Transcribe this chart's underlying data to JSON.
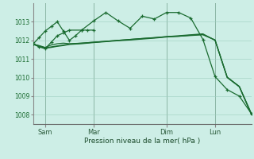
{
  "background_color": "#cdeee6",
  "grid_color": "#9ecfbf",
  "line_color": "#1a6b30",
  "xlabel": "Pression niveau de la mer( hPa )",
  "ylim": [
    1007.5,
    1014.0
  ],
  "yticks": [
    1008,
    1009,
    1010,
    1011,
    1012,
    1013
  ],
  "xlim": [
    0,
    18
  ],
  "xtick_positions": [
    1,
    5,
    11,
    15
  ],
  "xtick_labels": [
    "Sam",
    "Mar",
    "Dim",
    "Lun"
  ],
  "vline_positions": [
    1,
    5,
    11,
    15
  ],
  "series": [
    {
      "x": [
        0,
        0.5,
        1,
        1.5,
        2,
        2.5,
        3,
        4,
        5,
        6,
        7,
        8,
        9,
        10,
        11,
        12,
        13,
        14,
        15,
        16,
        17,
        18
      ],
      "y": [
        1011.8,
        1011.7,
        1011.6,
        1011.65,
        1011.7,
        1011.75,
        1011.8,
        1011.85,
        1011.9,
        1011.95,
        1012.0,
        1012.05,
        1012.1,
        1012.15,
        1012.2,
        1012.25,
        1012.3,
        1012.35,
        1012.0,
        1010.0,
        1009.5,
        1008.0
      ],
      "marker": null,
      "lw": 0.9,
      "zorder": 3
    },
    {
      "x": [
        0,
        0.5,
        1,
        1.5,
        2,
        2.5,
        3,
        4,
        5,
        6,
        7,
        8,
        9,
        10,
        11,
        12,
        13,
        14,
        15,
        16,
        17,
        18
      ],
      "y": [
        1011.8,
        1011.68,
        1011.58,
        1011.62,
        1011.68,
        1011.72,
        1011.78,
        1011.82,
        1011.88,
        1011.93,
        1011.98,
        1012.02,
        1012.07,
        1012.12,
        1012.18,
        1012.22,
        1012.28,
        1012.32,
        1012.02,
        1010.02,
        1009.52,
        1008.02
      ],
      "marker": null,
      "lw": 0.9,
      "zorder": 3
    },
    {
      "x": [
        0,
        0.5,
        1,
        1.5,
        2,
        2.5,
        3,
        4,
        5,
        6,
        7,
        8,
        9,
        10,
        11,
        12,
        13,
        14,
        15,
        16,
        17,
        18
      ],
      "y": [
        1011.8,
        1011.65,
        1011.55,
        1011.9,
        1012.25,
        1012.4,
        1012.55,
        1012.55,
        1013.05,
        1013.5,
        1013.05,
        1012.65,
        1013.3,
        1013.15,
        1013.5,
        1013.5,
        1013.2,
        1012.05,
        1010.05,
        1009.35,
        1009.0,
        1008.05
      ],
      "marker": "+",
      "lw": 0.9,
      "zorder": 5
    },
    {
      "x": [
        0,
        0.5,
        1,
        1.5,
        2,
        2.5,
        3,
        3.5,
        4,
        4.5,
        5
      ],
      "y": [
        1011.8,
        1012.15,
        1012.5,
        1012.75,
        1013.0,
        1012.5,
        1012.0,
        1012.25,
        1012.55,
        1012.55,
        1012.55
      ],
      "marker": "+",
      "lw": 0.9,
      "zorder": 5
    },
    {
      "x": [
        0,
        0.5,
        1,
        1.5,
        2,
        2.5,
        3,
        4,
        5,
        6,
        7,
        8,
        9,
        10,
        11,
        12,
        13,
        14,
        15,
        16,
        17,
        18
      ],
      "y": [
        1011.8,
        1011.72,
        1011.62,
        1011.75,
        1011.82,
        1011.85,
        1011.82,
        1011.85,
        1011.9,
        1011.95,
        1012.0,
        1012.05,
        1012.1,
        1012.14,
        1012.2,
        1012.22,
        1012.26,
        1012.3,
        1012.02,
        1010.02,
        1009.52,
        1008.06
      ],
      "marker": null,
      "lw": 0.9,
      "zorder": 3
    }
  ]
}
